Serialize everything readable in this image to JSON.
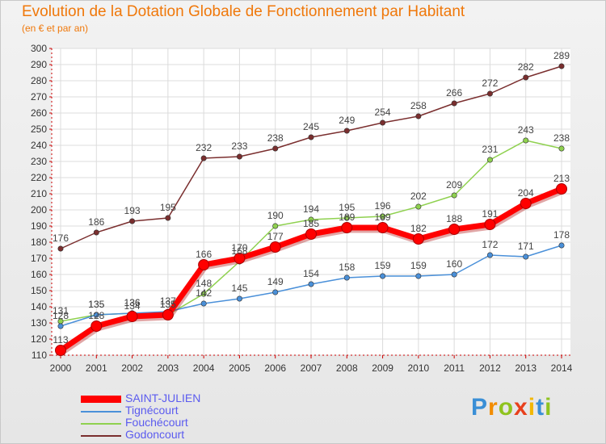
{
  "title": "Evolution de la Dotation Globale de Fonctionnement par Habitant",
  "subtitle": "(en € et par an)",
  "logo": {
    "text": "Proxiti",
    "letters": [
      {
        "ch": "P",
        "color": "#3a8fd6"
      },
      {
        "ch": "r",
        "color": "#f28c00"
      },
      {
        "ch": "o",
        "color": "#8fc31f"
      },
      {
        "ch": "x",
        "color": "#e8401c"
      },
      {
        "ch": "i",
        "color": "#f2b705"
      },
      {
        "ch": "t",
        "color": "#3a8fd6"
      },
      {
        "ch": "i",
        "color": "#8fc31f"
      }
    ]
  },
  "chart_data": {
    "type": "line",
    "title": "Evolution de la Dotation Globale de Fonctionnement par Habitant",
    "subtitle": "(en € et par an)",
    "xlabel": "",
    "ylabel": "",
    "x": [
      "2000",
      "2001",
      "2002",
      "2003",
      "2004",
      "2005",
      "2006",
      "2007",
      "2008",
      "2009",
      "2010",
      "2011",
      "2012",
      "2013",
      "2014"
    ],
    "ylim": [
      110,
      300
    ],
    "ytick_step": 10,
    "grid": true,
    "legend_position": "bottom-left",
    "series": [
      {
        "name": "SAINT-JULIEN",
        "color": "#ff0000",
        "values": [
          113,
          128,
          134,
          135,
          166,
          170,
          177,
          185,
          189,
          189,
          182,
          188,
          191,
          204,
          213
        ]
      },
      {
        "name": "Tignécourt",
        "color": "#4a90d9",
        "values": [
          128,
          135,
          136,
          137,
          142,
          145,
          149,
          154,
          158,
          159,
          159,
          160,
          172,
          171,
          178
        ]
      },
      {
        "name": "Fouchécourt",
        "color": "#8fd14f",
        "values": [
          131,
          135,
          136,
          135,
          148,
          168,
          190,
          194,
          195,
          196,
          202,
          209,
          231,
          243,
          238
        ]
      },
      {
        "name": "Godoncourt",
        "color": "#7a2e2e",
        "values": [
          176,
          186,
          193,
          195,
          232,
          233,
          238,
          245,
          249,
          254,
          258,
          266,
          272,
          282,
          289
        ]
      }
    ]
  }
}
